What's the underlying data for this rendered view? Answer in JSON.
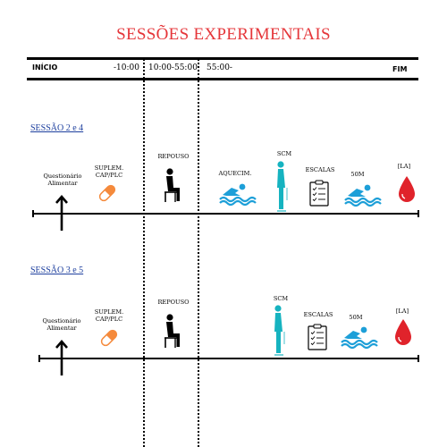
{
  "title": "SESSÕES EXPERIMENTAIS",
  "header": {
    "start": "INÍCIO",
    "t1": "-10:00",
    "t2": "10:00-55:00",
    "t3": "55:00-",
    "end": "FIM"
  },
  "session1": {
    "label": "SESSÃO 2 e 4",
    "questionnaire": "Questionário Alimentar",
    "supplement": "SUPLEM. CAP/PLC",
    "rest": "REPOUSO",
    "warmup": "AQUECIM.",
    "scm": "SCM",
    "scales": "ESCALAS",
    "swim": "50M",
    "lactate": "[LA]"
  },
  "session2": {
    "label": "SESSÃO 3 e 5",
    "questionnaire": "Questionário Alimentar",
    "supplement": "SUPLEM. CAP/PLC",
    "rest": "REPOUSO",
    "scm": "SCM",
    "scales": "ESCALAS",
    "swim": "50M",
    "lactate": "[LA]"
  },
  "colors": {
    "title": "#e5363a",
    "link": "#1d3f9e",
    "pill": "#f58a3c",
    "swim": "#1d9fd8",
    "person": "#16b3c0",
    "drop": "#e0232b"
  },
  "icons": [
    "arrow-up-icon",
    "pill-icon",
    "seated-person-icon",
    "swimmer-icon",
    "standing-person-icon",
    "checklist-icon",
    "blood-drop-icon"
  ]
}
